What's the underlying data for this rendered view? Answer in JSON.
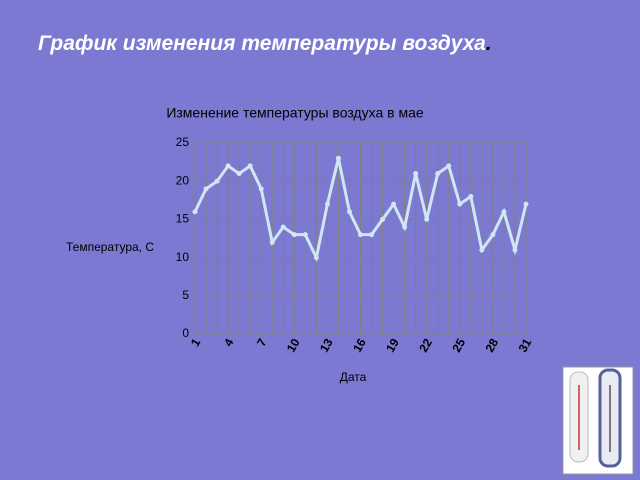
{
  "slide": {
    "title": "График изменения температуры воздуха",
    "title_suffix": "."
  },
  "chart_data": {
    "type": "line",
    "title": "Изменение температуры воздуха в мае",
    "y_label": "Температура, С",
    "x_label": "Дата",
    "x": [
      1,
      2,
      3,
      4,
      5,
      6,
      7,
      8,
      9,
      10,
      11,
      12,
      13,
      14,
      15,
      16,
      17,
      18,
      19,
      20,
      21,
      22,
      23,
      24,
      25,
      26,
      27,
      28,
      29,
      30,
      31
    ],
    "xlim": [
      1,
      31
    ],
    "xticks": [
      1,
      4,
      7,
      10,
      13,
      16,
      19,
      22,
      25,
      28,
      31
    ],
    "ylim": [
      0,
      25
    ],
    "yticks": [
      0,
      5,
      10,
      15,
      20,
      25
    ],
    "grid": true,
    "series": [
      {
        "color": "#cfe6f5",
        "values": [
          16,
          19,
          20,
          22,
          21,
          22,
          19,
          12,
          14,
          13,
          13,
          10,
          17,
          23,
          16,
          13,
          13,
          15,
          17,
          14,
          21,
          15,
          21,
          22,
          17,
          18,
          11,
          13,
          16,
          11,
          17
        ]
      }
    ]
  }
}
